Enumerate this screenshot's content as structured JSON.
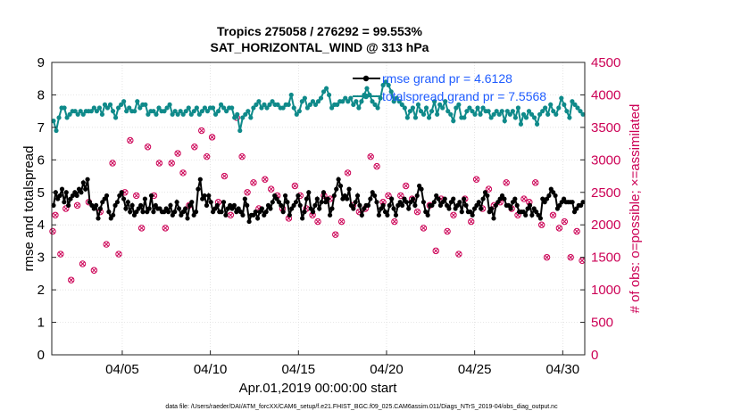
{
  "chart_data": {
    "type": "line",
    "title_line1": "Tropics 275058 / 276292 = 99.553%",
    "title_line2": "SAT_HORIZONTAL_WIND @ 313 hPa",
    "xlabel": "Apr.01,2019 00:00:00 start",
    "ylabel_left": "rmse and totalspread",
    "ylabel_right": "# of obs: o=possible; ×=assimilated",
    "footer": "data file: /Users/raeder/DAI/ATM_forcXX/CAM6_setup/f.e21.FHIST_BGC.f09_025.CAM6assim.011/Diags_NTrS_2019-04/obs_diag_output.nc",
    "x_range_days": [
      1.0,
      31.25
    ],
    "xtick_days": [
      5,
      10,
      15,
      20,
      25,
      30
    ],
    "xtick_labels": [
      "04/05",
      "04/10",
      "04/15",
      "04/20",
      "04/25",
      "04/30"
    ],
    "ylim_left": [
      0,
      9
    ],
    "yticks_left": [
      "0",
      "1",
      "2",
      "3",
      "4",
      "5",
      "6",
      "7",
      "8",
      "9"
    ],
    "ylim_right": [
      0,
      4500
    ],
    "yticks_right": [
      "0",
      "500",
      "1000",
      "1500",
      "2000",
      "2500",
      "3000",
      "3500",
      "4000",
      "4500"
    ],
    "grid": true,
    "legend_position": "top-right",
    "legend": [
      "rmse grand pr = 4.6128",
      "totalspread grand pr = 7.5568"
    ],
    "colors": {
      "rmse": "#000000",
      "spread": "#0f8a8a",
      "obs": "#cc0055",
      "legend_text": "#1f5cff"
    },
    "series": [
      {
        "name": "rmse",
        "axis": "left",
        "values": [
          4.6,
          5.0,
          4.8,
          4.9,
          5.1,
          4.7,
          5.0,
          4.6,
          4.8,
          4.9,
          5.0,
          4.9,
          5.1,
          5.0,
          5.3,
          5.1,
          5.4,
          4.7,
          4.6,
          4.5,
          4.6,
          4.2,
          4.5,
          4.7,
          4.8,
          4.9,
          4.4,
          4.2,
          4.3,
          4.6,
          4.7,
          4.9,
          5.0,
          4.8,
          4.5,
          4.7,
          4.4,
          4.6,
          4.3,
          4.4,
          4.5,
          4.6,
          4.4,
          4.8,
          4.4,
          4.5,
          4.9,
          4.4,
          4.6,
          4.5,
          4.5,
          4.4,
          4.4,
          4.5,
          4.4,
          4.6,
          4.3,
          4.4,
          4.7,
          4.5,
          4.3,
          4.4,
          4.5,
          4.2,
          4.6,
          4.7,
          4.3,
          4.4,
          5.1,
          5.4,
          4.8,
          4.9,
          4.6,
          4.9,
          4.7,
          4.4,
          4.5,
          4.6,
          4.4,
          4.4,
          4.7,
          4.3,
          4.5,
          4.6,
          4.5,
          4.6,
          4.4,
          4.5,
          4.4,
          4.3,
          4.8,
          4.6,
          4.1,
          4.3,
          4.3,
          4.4,
          4.2,
          4.4,
          4.5,
          4.3,
          4.4,
          4.6,
          4.5,
          4.7,
          4.9,
          4.8,
          4.7,
          4.6,
          4.4,
          4.9,
          4.7,
          4.3,
          4.5,
          4.6,
          4.7,
          4.9,
          4.6,
          4.2,
          4.4,
          4.8,
          5.0,
          4.5,
          4.4,
          4.6,
          4.8,
          4.5,
          4.7,
          5.0,
          4.7,
          4.8,
          4.3,
          4.5,
          4.9,
          5.1,
          5.4,
          5.2,
          4.8,
          4.9,
          4.8,
          5.1,
          4.6,
          4.5,
          4.7,
          4.9,
          4.6,
          4.3,
          4.5,
          4.6,
          4.6,
          4.8,
          5.0,
          4.9,
          4.7,
          4.3,
          4.5,
          4.6,
          4.4,
          4.3,
          4.6,
          4.8,
          4.5,
          4.3,
          4.6,
          4.7,
          4.6,
          4.8,
          4.7,
          4.5,
          4.7,
          4.8,
          4.6,
          4.9,
          5.2,
          5.1,
          4.7,
          4.4,
          4.3,
          4.6,
          4.6,
          4.7,
          4.9,
          4.8,
          4.6,
          4.7,
          4.8,
          4.6,
          4.5,
          4.7,
          4.8,
          4.5,
          4.6,
          4.7,
          4.4,
          4.8,
          4.6,
          4.4,
          4.4,
          4.3,
          4.5,
          4.6,
          4.7,
          4.5,
          4.8,
          5.0,
          4.9,
          4.4,
          4.5,
          4.2,
          4.6,
          4.7,
          4.8,
          4.9,
          4.8,
          4.6,
          4.6,
          4.5,
          4.7,
          4.8,
          4.6,
          4.4,
          4.4,
          4.4,
          4.3,
          4.5,
          4.6,
          4.3,
          4.5,
          4.4,
          4.3,
          4.2,
          4.8,
          4.7,
          4.8,
          4.9,
          5.1,
          5.0,
          4.9,
          4.5,
          4.6,
          4.7,
          4.8,
          4.7,
          4.7,
          4.7,
          4.7,
          4.4,
          4.5,
          4.6,
          4.6,
          4.7
        ]
      },
      {
        "name": "totalspread",
        "axis": "left",
        "values": [
          7.2,
          6.9,
          7.3,
          7.6,
          7.6,
          7.3,
          7.4,
          7.5,
          7.5,
          7.4,
          7.5,
          7.4,
          7.5,
          7.5,
          7.5,
          7.6,
          7.5,
          7.6,
          7.4,
          7.7,
          7.6,
          7.7,
          7.5,
          7.3,
          7.6,
          7.7,
          7.8,
          7.5,
          7.6,
          7.5,
          7.5,
          7.8,
          7.6,
          7.7,
          7.7,
          7.4,
          7.5,
          7.5,
          7.4,
          7.6,
          7.5,
          7.5,
          7.6,
          7.7,
          7.4,
          7.5,
          7.4,
          7.5,
          7.4,
          7.5,
          7.6,
          7.4,
          7.5,
          7.6,
          7.4,
          7.5,
          7.6,
          7.5,
          7.6,
          7.6,
          7.4,
          7.5,
          7.7,
          7.6,
          7.5,
          7.6,
          7.6,
          7.3,
          7.4,
          6.9,
          7.3,
          7.4,
          7.5,
          7.3,
          7.6,
          7.7,
          7.8,
          7.6,
          7.7,
          7.6,
          7.7,
          7.8,
          7.7,
          7.7,
          7.6,
          7.6,
          7.7,
          7.7,
          8.0,
          7.6,
          7.4,
          7.5,
          7.8,
          7.9,
          7.6,
          7.7,
          7.8,
          7.7,
          7.8,
          7.9,
          8.1,
          8.2,
          8.0,
          7.6,
          7.7,
          7.7,
          7.8,
          7.8,
          7.9,
          7.8,
          7.9,
          7.7,
          7.8,
          7.6,
          7.8,
          8.0,
          8.2,
          8.0,
          7.8,
          7.7,
          7.6,
          7.9,
          8.3,
          8.4,
          8.3,
          8.1,
          7.8,
          7.9,
          7.8,
          7.7,
          7.6,
          7.3,
          7.5,
          7.6,
          7.3,
          7.7,
          7.5,
          7.4,
          7.6,
          7.3,
          7.5,
          7.8,
          7.4,
          7.7,
          7.6,
          7.8,
          7.5,
          7.4,
          7.2,
          7.6,
          7.7,
          7.3,
          7.3,
          7.5,
          7.6,
          7.5,
          7.4,
          7.6,
          7.4,
          7.6,
          7.5,
          7.5,
          7.3,
          7.4,
          7.5,
          7.4,
          7.5,
          7.2,
          7.5,
          7.4,
          7.5,
          7.3,
          7.6,
          7.1,
          7.4,
          7.3,
          7.5,
          7.4,
          7.3,
          7.1,
          7.4,
          7.5,
          7.6,
          7.4,
          7.7,
          7.5,
          7.4,
          7.6,
          7.9,
          7.7,
          7.5,
          7.3,
          7.8,
          7.7,
          7.6,
          7.5,
          7.4
        ]
      },
      {
        "name": "obs_possible",
        "axis": "right",
        "x": [
          1.05,
          1.2,
          1.5,
          1.8,
          2.1,
          2.45,
          2.75,
          3.1,
          3.4,
          3.75,
          4.1,
          4.45,
          4.8,
          5.15,
          5.45,
          5.8,
          6.1,
          6.45,
          6.8,
          7.1,
          7.45,
          7.8,
          8.15,
          8.45,
          8.8,
          9.1,
          9.5,
          9.8,
          10.1,
          10.45,
          10.8,
          11.15,
          11.5,
          11.8,
          12.1,
          12.45,
          12.75,
          13.1,
          13.45,
          13.8,
          14.1,
          14.45,
          14.8,
          15.1,
          15.45,
          15.8,
          16.1,
          16.45,
          16.8,
          17.1,
          17.45,
          17.8,
          18.1,
          18.45,
          18.8,
          19.1,
          19.45,
          19.8,
          20.1,
          20.45,
          20.8,
          21.1,
          21.45,
          21.75,
          22.1,
          22.45,
          22.8,
          23.1,
          23.45,
          23.8,
          24.1,
          24.45,
          24.8,
          25.1,
          25.45,
          25.8,
          26.1,
          26.45,
          26.8,
          27.1,
          27.45,
          27.8,
          28.1,
          28.45,
          28.8,
          29.1,
          29.45,
          29.8,
          30.1,
          30.45,
          30.8,
          31.1
        ],
        "values": [
          1900,
          2150,
          1550,
          2250,
          1150,
          2300,
          1400,
          2350,
          1300,
          2200,
          1700,
          2950,
          1550,
          2500,
          3300,
          2450,
          1950,
          3200,
          2450,
          2950,
          1950,
          2950,
          3100,
          2800,
          2300,
          3200,
          3450,
          3050,
          3350,
          2350,
          2750,
          2150,
          3650,
          3050,
          2500,
          2650,
          2250,
          2700,
          2550,
          2450,
          2250,
          2100,
          2600,
          2450,
          2250,
          2150,
          2050,
          2450,
          2400,
          1850,
          2050,
          2800,
          2300,
          2200,
          2250,
          3050,
          2900,
          2350,
          2450,
          2050,
          2450,
          2600,
          2400,
          2200,
          1950,
          2300,
          1600,
          2400,
          1900,
          2150,
          1550,
          2400,
          2050,
          2700,
          2250,
          2550,
          2300,
          2350,
          2650,
          2250,
          2150,
          2400,
          2350,
          2650,
          2000,
          1500,
          2150,
          1950,
          2050,
          1500,
          1900,
          1450
        ]
      },
      {
        "name": "obs_assimilated",
        "axis": "right",
        "note": "plotted at same x as obs_possible",
        "values": [
          1900,
          2150,
          1550,
          2250,
          1150,
          2300,
          1400,
          2350,
          1300,
          2200,
          1700,
          2950,
          1550,
          2500,
          3300,
          2450,
          1950,
          3200,
          2450,
          2950,
          1950,
          2950,
          3100,
          2800,
          2300,
          3200,
          3450,
          3050,
          3350,
          2350,
          2750,
          2150,
          3650,
          3050,
          2500,
          2650,
          2250,
          2700,
          2550,
          2450,
          2250,
          2100,
          2600,
          2450,
          2250,
          2150,
          2050,
          2450,
          2400,
          1850,
          2050,
          2800,
          2300,
          2200,
          2250,
          3050,
          2900,
          2350,
          2450,
          2050,
          2450,
          2600,
          2400,
          2200,
          1950,
          2300,
          1600,
          2400,
          1900,
          2150,
          1550,
          2400,
          2050,
          2700,
          2250,
          2550,
          2300,
          2350,
          2650,
          2250,
          2150,
          2400,
          2350,
          2650,
          2000,
          1500,
          2150,
          1950,
          2050,
          1500,
          1900,
          1450
        ]
      }
    ]
  }
}
